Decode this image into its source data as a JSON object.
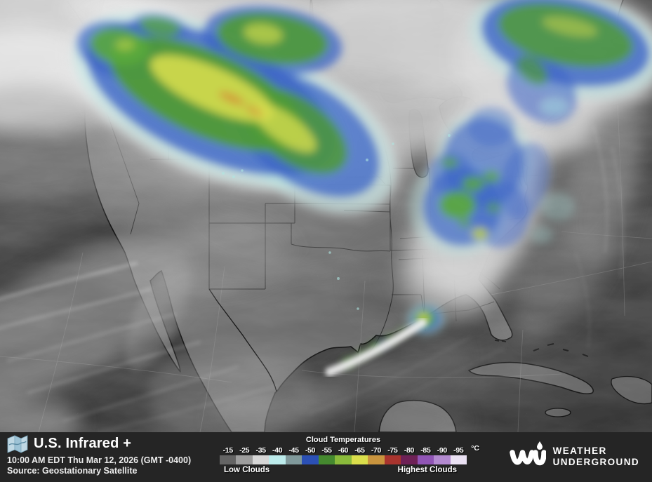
{
  "footer": {
    "title": "U.S. Infrared +",
    "timestamp": "10:00 AM EDT Thu Mar 12, 2026 (GMT -0400)",
    "source": "Source: Geostationary Satellite",
    "legend": {
      "title": "Cloud Temperatures",
      "unit": "°C",
      "low_label": "Low Clouds",
      "high_label": "Highest Clouds",
      "stops": [
        {
          "label": "-15",
          "color": "#646464"
        },
        {
          "label": "-25",
          "color": "#9d9d9d"
        },
        {
          "label": "-35",
          "color": "#d6d6d6"
        },
        {
          "label": "-40",
          "color": "#bcebeb"
        },
        {
          "label": "-45",
          "color": "#80999b"
        },
        {
          "label": "-50",
          "color": "#2b50b5"
        },
        {
          "label": "-55",
          "color": "#45892f"
        },
        {
          "label": "-60",
          "color": "#8aba3b"
        },
        {
          "label": "-65",
          "color": "#dade4b"
        },
        {
          "label": "-70",
          "color": "#c9943e"
        },
        {
          "label": "-75",
          "color": "#a8342e"
        },
        {
          "label": "-80",
          "color": "#6e2156"
        },
        {
          "label": "-85",
          "color": "#9055b5"
        },
        {
          "label": "-90",
          "color": "#b38ad0"
        },
        {
          "label": "-95",
          "color": "#eae1f3"
        }
      ]
    },
    "brand": {
      "line1": "WEATHER",
      "line2": "UNDERGROUND"
    }
  }
}
